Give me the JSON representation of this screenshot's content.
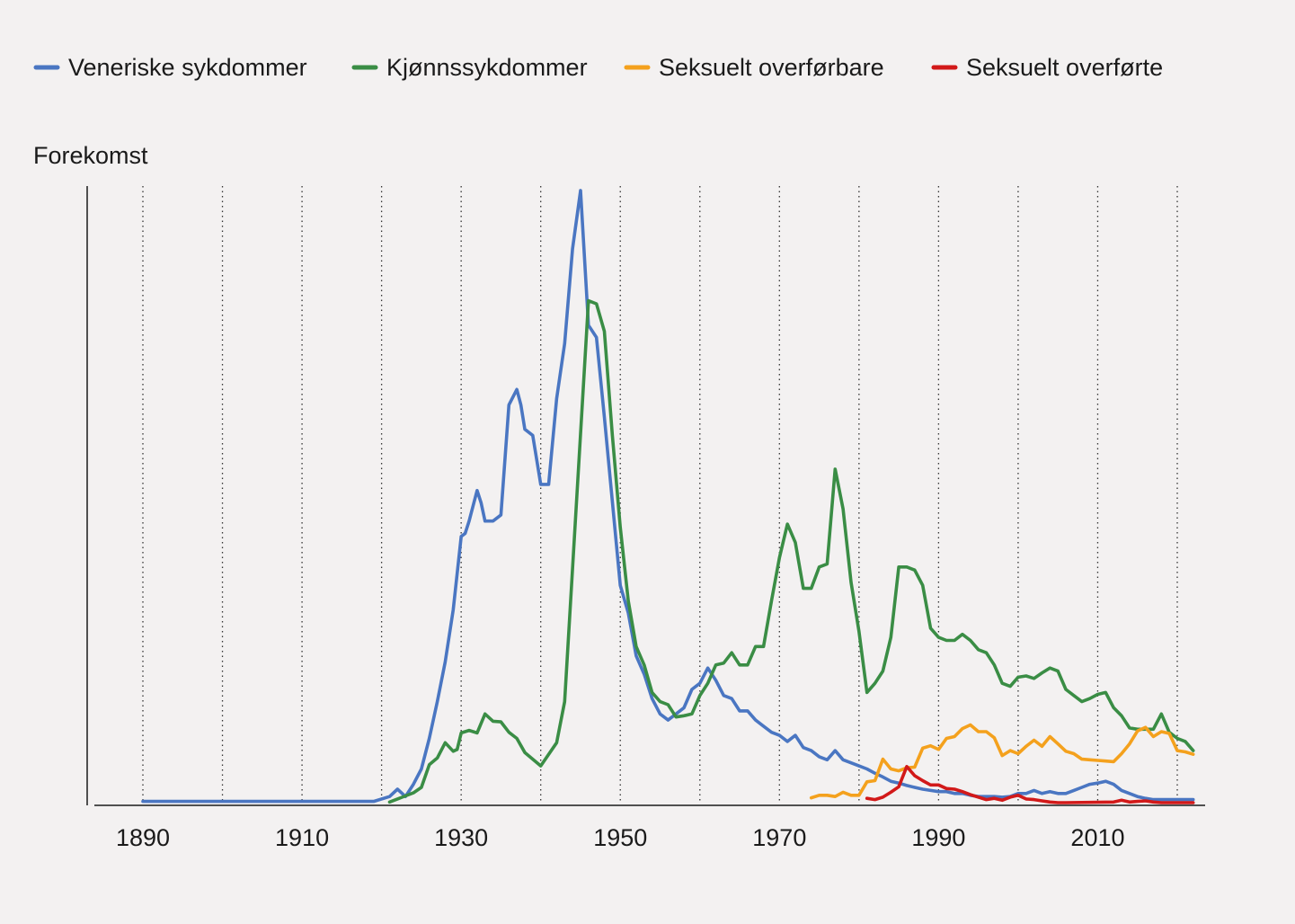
{
  "chart_data": {
    "type": "line",
    "ylabel": "Forekomst",
    "xlim": [
      1884,
      2024
    ],
    "ylim": [
      0,
      100
    ],
    "x_ticks": [
      1890,
      1910,
      1930,
      1950,
      1970,
      1990,
      2010
    ],
    "gridlines_at": [
      1890,
      1900,
      1910,
      1920,
      1930,
      1940,
      1950,
      1960,
      1970,
      1980,
      1990,
      2000,
      2010,
      2020
    ],
    "legend_position": "top-left",
    "y_tick_labels": "none",
    "series": [
      {
        "name": "Veneriske sykdommer",
        "color": "#4a76c2",
        "points": [
          [
            1890,
            0.2
          ],
          [
            1919,
            0.2
          ],
          [
            1921,
            1.0
          ],
          [
            1922,
            2.2
          ],
          [
            1923,
            1.0
          ],
          [
            1924,
            3.0
          ],
          [
            1925,
            5.5
          ],
          [
            1926,
            10.5
          ],
          [
            1927,
            16.5
          ],
          [
            1928,
            23.0
          ],
          [
            1929,
            31.5
          ],
          [
            1930,
            43.5
          ],
          [
            1930.5,
            44.0
          ],
          [
            1931,
            46.0
          ],
          [
            1932,
            51.0
          ],
          [
            1932.5,
            49.0
          ],
          [
            1933,
            46.0
          ],
          [
            1934,
            46.0
          ],
          [
            1935,
            47.0
          ],
          [
            1936,
            65.0
          ],
          [
            1937,
            67.5
          ],
          [
            1937.5,
            65.0
          ],
          [
            1938,
            61.0
          ],
          [
            1939,
            60.0
          ],
          [
            1940,
            52.0
          ],
          [
            1941,
            52.0
          ],
          [
            1942,
            66.0
          ],
          [
            1943,
            75.0
          ],
          [
            1944,
            90.5
          ],
          [
            1945,
            100.0
          ],
          [
            1946,
            78.0
          ],
          [
            1947,
            76.0
          ],
          [
            1948,
            63.0
          ],
          [
            1950,
            35.5
          ],
          [
            1951,
            31.0
          ],
          [
            1952,
            24.0
          ],
          [
            1953,
            21.0
          ],
          [
            1954,
            17.0
          ],
          [
            1955,
            14.5
          ],
          [
            1956,
            13.5
          ],
          [
            1957,
            14.5
          ],
          [
            1958,
            15.5
          ],
          [
            1959,
            18.5
          ],
          [
            1960,
            19.5
          ],
          [
            1961,
            22.0
          ],
          [
            1962,
            20.0
          ],
          [
            1963,
            17.5
          ],
          [
            1964,
            17.0
          ],
          [
            1965,
            15.0
          ],
          [
            1966,
            15.0
          ],
          [
            1967,
            13.5
          ],
          [
            1968,
            12.5
          ],
          [
            1969,
            11.5
          ],
          [
            1970,
            11.0
          ],
          [
            1971,
            10.0
          ],
          [
            1972,
            11.0
          ],
          [
            1973,
            9.0
          ],
          [
            1974,
            8.5
          ],
          [
            1975,
            7.5
          ],
          [
            1976,
            7.0
          ],
          [
            1977,
            8.5
          ],
          [
            1978,
            7.0
          ],
          [
            1979,
            6.5
          ],
          [
            1980,
            6.0
          ],
          [
            1981,
            5.5
          ],
          [
            1982,
            4.8
          ],
          [
            1983,
            4.2
          ],
          [
            1984,
            3.5
          ],
          [
            1985,
            3.2
          ],
          [
            1986,
            2.8
          ],
          [
            1987,
            2.5
          ],
          [
            1988,
            2.2
          ],
          [
            1989,
            2.0
          ],
          [
            1990,
            1.8
          ],
          [
            1991,
            1.8
          ],
          [
            1992,
            1.5
          ],
          [
            1993,
            1.5
          ],
          [
            1994,
            1.2
          ],
          [
            1995,
            1.0
          ],
          [
            1996,
            1.0
          ],
          [
            1997,
            1.0
          ],
          [
            1998,
            0.9
          ],
          [
            1999,
            1.0
          ],
          [
            2000,
            1.5
          ],
          [
            2001,
            1.5
          ],
          [
            2002,
            2.0
          ],
          [
            2003,
            1.5
          ],
          [
            2004,
            1.8
          ],
          [
            2005,
            1.5
          ],
          [
            2006,
            1.5
          ],
          [
            2007,
            2.0
          ],
          [
            2008,
            2.5
          ],
          [
            2009,
            3.0
          ],
          [
            2010,
            3.2
          ],
          [
            2011,
            3.5
          ],
          [
            2012,
            3.0
          ],
          [
            2013,
            2.0
          ],
          [
            2014,
            1.5
          ],
          [
            2015,
            1.0
          ],
          [
            2016,
            0.7
          ],
          [
            2017,
            0.5
          ],
          [
            2018,
            0.5
          ],
          [
            2019,
            0.5
          ],
          [
            2020,
            0.5
          ],
          [
            2021,
            0.5
          ],
          [
            2022,
            0.5
          ]
        ]
      },
      {
        "name": "Kjønnssykdommer",
        "color": "#3a8d45",
        "points": [
          [
            1921,
            0.1
          ],
          [
            1922,
            0.6
          ],
          [
            1923,
            1.1
          ],
          [
            1924,
            1.6
          ],
          [
            1925,
            2.5
          ],
          [
            1926,
            6.2
          ],
          [
            1927,
            7.3
          ],
          [
            1928,
            9.8
          ],
          [
            1929,
            8.4
          ],
          [
            1929.5,
            8.7
          ],
          [
            1930,
            11.4
          ],
          [
            1931,
            11.8
          ],
          [
            1932,
            11.4
          ],
          [
            1933,
            14.5
          ],
          [
            1934,
            13.3
          ],
          [
            1935,
            13.2
          ],
          [
            1936,
            11.5
          ],
          [
            1937,
            10.5
          ],
          [
            1938,
            8.2
          ],
          [
            1940,
            6.0
          ],
          [
            1942,
            9.8
          ],
          [
            1943,
            16.5
          ],
          [
            1946,
            82.0
          ],
          [
            1947,
            81.5
          ],
          [
            1948,
            77.0
          ],
          [
            1949,
            60.0
          ],
          [
            1950,
            45.0
          ],
          [
            1951,
            33.0
          ],
          [
            1952,
            25.5
          ],
          [
            1953,
            22.5
          ],
          [
            1954,
            18.0
          ],
          [
            1955,
            16.5
          ],
          [
            1956,
            16.0
          ],
          [
            1957,
            14.0
          ],
          [
            1958,
            14.2
          ],
          [
            1959,
            14.5
          ],
          [
            1960,
            17.5
          ],
          [
            1961,
            19.5
          ],
          [
            1962,
            22.5
          ],
          [
            1963,
            22.8
          ],
          [
            1964,
            24.5
          ],
          [
            1965,
            22.5
          ],
          [
            1966,
            22.5
          ],
          [
            1967,
            25.5
          ],
          [
            1968,
            25.5
          ],
          [
            1969,
            33.0
          ],
          [
            1970,
            40.0
          ],
          [
            1971,
            45.5
          ],
          [
            1972,
            42.5
          ],
          [
            1973,
            35.0
          ],
          [
            1974,
            35.0
          ],
          [
            1975,
            38.5
          ],
          [
            1976,
            39.0
          ],
          [
            1977,
            54.5
          ],
          [
            1978,
            48.0
          ],
          [
            1979,
            36.0
          ],
          [
            1980,
            28.0
          ],
          [
            1981,
            18.0
          ],
          [
            1982,
            19.5
          ],
          [
            1983,
            21.5
          ],
          [
            1984,
            27.0
          ],
          [
            1985,
            38.5
          ],
          [
            1986,
            38.5
          ],
          [
            1987,
            38.0
          ],
          [
            1988,
            35.5
          ],
          [
            1989,
            28.5
          ],
          [
            1990,
            27.0
          ],
          [
            1991,
            26.5
          ],
          [
            1992,
            26.5
          ],
          [
            1993,
            27.5
          ],
          [
            1994,
            26.5
          ],
          [
            1995,
            25.0
          ],
          [
            1996,
            24.5
          ],
          [
            1997,
            22.5
          ],
          [
            1998,
            19.5
          ],
          [
            1999,
            19.0
          ],
          [
            2000,
            20.5
          ],
          [
            2001,
            20.7
          ],
          [
            2002,
            20.3
          ],
          [
            2003,
            21.2
          ],
          [
            2004,
            22.0
          ],
          [
            2005,
            21.5
          ],
          [
            2006,
            18.5
          ],
          [
            2007,
            17.5
          ],
          [
            2008,
            16.5
          ],
          [
            2009,
            17.0
          ],
          [
            2010,
            17.7
          ],
          [
            2011,
            18.0
          ],
          [
            2012,
            15.5
          ],
          [
            2013,
            14.2
          ],
          [
            2014,
            12.2
          ],
          [
            2015,
            12.0
          ],
          [
            2016,
            12.0
          ],
          [
            2017,
            12.0
          ],
          [
            2018,
            14.5
          ],
          [
            2019,
            11.5
          ],
          [
            2020,
            10.5
          ],
          [
            2021,
            10.0
          ],
          [
            2022,
            8.5
          ]
        ]
      },
      {
        "name": "Seksuelt overførbare",
        "color": "#f4a11d",
        "points": [
          [
            1974,
            0.8
          ],
          [
            1975,
            1.2
          ],
          [
            1976,
            1.2
          ],
          [
            1977,
            1.0
          ],
          [
            1978,
            1.7
          ],
          [
            1979,
            1.2
          ],
          [
            1980,
            1.2
          ],
          [
            1981,
            3.4
          ],
          [
            1982,
            3.6
          ],
          [
            1983,
            7.1
          ],
          [
            1984,
            5.5
          ],
          [
            1985,
            5.2
          ],
          [
            1986,
            5.7
          ],
          [
            1987,
            5.8
          ],
          [
            1988,
            8.9
          ],
          [
            1989,
            9.3
          ],
          [
            1990,
            8.7
          ],
          [
            1991,
            10.5
          ],
          [
            1992,
            10.8
          ],
          [
            1993,
            12.1
          ],
          [
            1994,
            12.7
          ],
          [
            1995,
            11.6
          ],
          [
            1996,
            11.6
          ],
          [
            1997,
            10.6
          ],
          [
            1998,
            7.7
          ],
          [
            1999,
            8.5
          ],
          [
            2000,
            8.0
          ],
          [
            2001,
            9.2
          ],
          [
            2002,
            10.2
          ],
          [
            2003,
            9.2
          ],
          [
            2004,
            10.8
          ],
          [
            2005,
            9.6
          ],
          [
            2006,
            8.4
          ],
          [
            2007,
            8.0
          ],
          [
            2008,
            7.1
          ],
          [
            2009,
            7.0
          ],
          [
            2010,
            6.9
          ],
          [
            2011,
            6.8
          ],
          [
            2012,
            6.7
          ],
          [
            2013,
            8.0
          ],
          [
            2014,
            9.6
          ],
          [
            2015,
            11.7
          ],
          [
            2016,
            12.3
          ],
          [
            2017,
            10.8
          ],
          [
            2018,
            11.6
          ],
          [
            2019,
            11.3
          ],
          [
            2020,
            8.5
          ],
          [
            2021,
            8.3
          ],
          [
            2022,
            7.9
          ]
        ]
      },
      {
        "name": "Seksuelt overførte",
        "color": "#d21919",
        "points": [
          [
            1981,
            0.7
          ],
          [
            1982,
            0.5
          ],
          [
            1983,
            0.9
          ],
          [
            1984,
            1.7
          ],
          [
            1985,
            2.6
          ],
          [
            1986,
            5.9
          ],
          [
            1987,
            4.4
          ],
          [
            1988,
            3.6
          ],
          [
            1989,
            2.9
          ],
          [
            1990,
            2.9
          ],
          [
            1991,
            2.3
          ],
          [
            1992,
            2.2
          ],
          [
            1993,
            1.8
          ],
          [
            1994,
            1.3
          ],
          [
            1995,
            0.9
          ],
          [
            1996,
            0.5
          ],
          [
            1997,
            0.7
          ],
          [
            1998,
            0.4
          ],
          [
            1999,
            0.9
          ],
          [
            2000,
            1.2
          ],
          [
            2001,
            0.6
          ],
          [
            2002,
            0.5
          ],
          [
            2003,
            0.3
          ],
          [
            2004,
            0.1
          ],
          [
            2005,
            0.0
          ],
          [
            2006,
            0.0
          ],
          [
            2012,
            0.1
          ],
          [
            2013,
            0.4
          ],
          [
            2014,
            0.1
          ],
          [
            2015,
            0.2
          ],
          [
            2016,
            0.3
          ],
          [
            2017,
            0.1
          ],
          [
            2018,
            0.0
          ],
          [
            2022,
            0.0
          ]
        ]
      }
    ]
  }
}
